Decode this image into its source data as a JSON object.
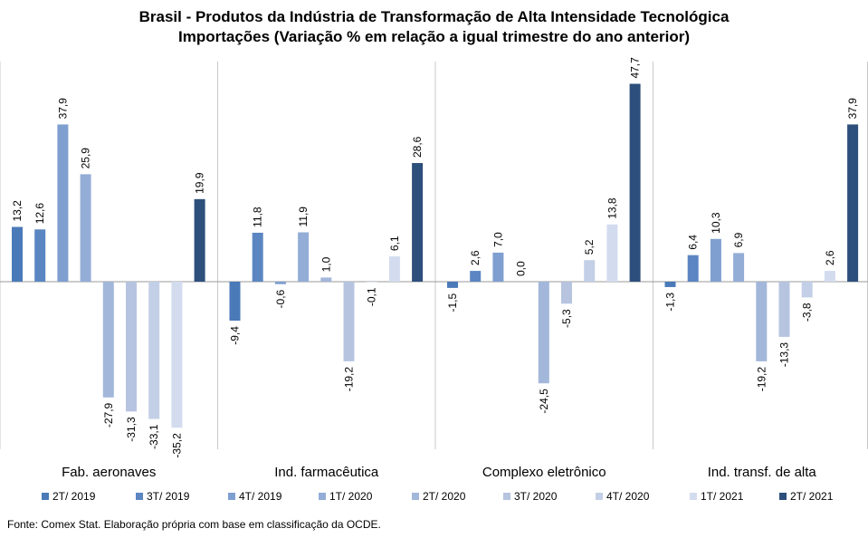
{
  "chart_data": {
    "type": "bar",
    "title": "Brasil - Produtos da Indústria de Transformação  de Alta Intensidade Tecnológica",
    "subtitle": "Importações (Variação % em relação a igual trimestre do ano anterior)",
    "categories": [
      "Fab. aeronaves",
      "Ind. farmacêutica",
      "Complexo eletrônico",
      "Ind. transf. de alta"
    ],
    "series": [
      {
        "name": "2T/ 2019",
        "color": "#4a7ab8",
        "values": [
          13.2,
          -9.4,
          -1.5,
          -1.3
        ]
      },
      {
        "name": "3T/ 2019",
        "color": "#5b86c2",
        "values": [
          12.6,
          11.8,
          2.6,
          6.4
        ]
      },
      {
        "name": "4T/ 2019",
        "color": "#7f9fd0",
        "values": [
          37.9,
          -0.6,
          7.0,
          10.3
        ]
      },
      {
        "name": "1T/ 2020",
        "color": "#93add6",
        "values": [
          25.9,
          11.9,
          0.0,
          6.9
        ]
      },
      {
        "name": "2T/ 2020",
        "color": "#a2b7da",
        "values": [
          -27.9,
          1.0,
          -24.5,
          -19.2
        ]
      },
      {
        "name": "3T/ 2020",
        "color": "#b6c4e0",
        "values": [
          -31.3,
          -19.2,
          -5.3,
          -13.3
        ]
      },
      {
        "name": "4T/ 2020",
        "color": "#c3cfe6",
        "values": [
          -33.1,
          -0.1,
          5.2,
          -3.8
        ]
      },
      {
        "name": "1T/ 2021",
        "color": "#d3dcee",
        "values": [
          -35.2,
          6.1,
          13.8,
          2.6
        ]
      },
      {
        "name": "2T/ 2021",
        "color": "#2d4f7c",
        "values": [
          19.9,
          28.6,
          47.7,
          37.9
        ]
      }
    ],
    "value_labels": [
      [
        "13,2",
        "-9,4",
        "-1,5",
        "-1,3"
      ],
      [
        "12,6",
        "11,8",
        "2,6",
        "6,4"
      ],
      [
        "37,9",
        "-0,6",
        "7,0",
        "10,3"
      ],
      [
        "25,9",
        "11,9",
        "0,0",
        "6,9"
      ],
      [
        "-27,9",
        "1,0",
        "-24,5",
        "-19,2"
      ],
      [
        "-31,3",
        "-19,2",
        "-5,3",
        "-13,3"
      ],
      [
        "-33,1",
        "-0,1",
        "5,2",
        "-3,8"
      ],
      [
        "-35,2",
        "6,1",
        "13,8",
        "2,6"
      ],
      [
        "19,9",
        "28,6",
        "47,7",
        "37,9"
      ]
    ],
    "ylim": [
      -40,
      52
    ],
    "grid": false,
    "legend_position": "bottom",
    "xlabel": "",
    "ylabel": ""
  },
  "source_note": "Fonte: Comex Stat. Elaboração própria com base em classificação da OCDE."
}
